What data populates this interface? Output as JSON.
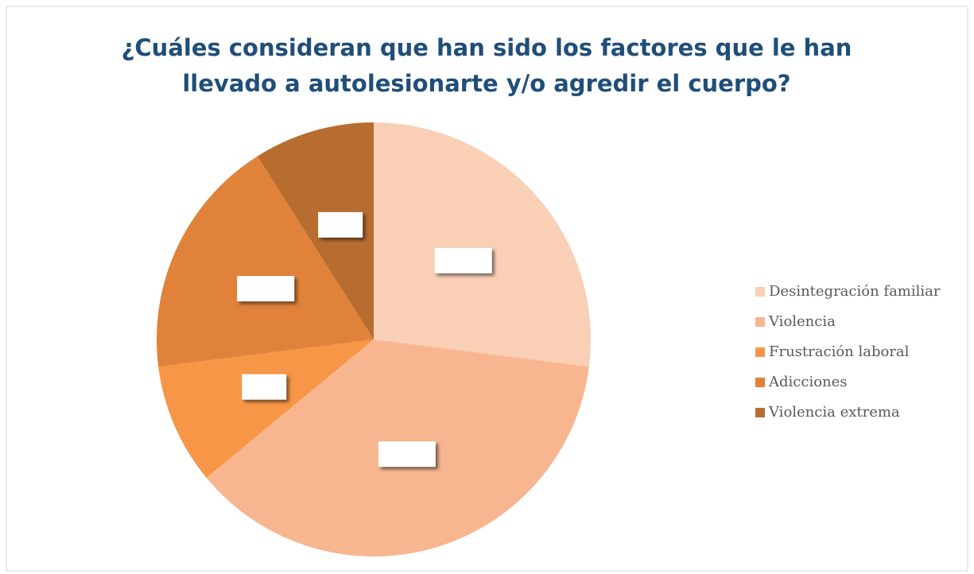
{
  "chart_data": {
    "type": "pie",
    "title": [
      "¿Cuáles consideran que han sido los factores que le han",
      "llevado a autolesionarte y/o agredir el cuerpo?"
    ],
    "categories": [
      "Desintegración familiar",
      "Violencia",
      "Frustración laboral",
      "Adicciones",
      "Violencia extrema"
    ],
    "values": [
      27,
      37,
      9,
      18,
      9
    ],
    "colors": [
      "#f9cfb5",
      "#f8b690",
      "#f79646",
      "#e0823a",
      "#b86d30"
    ],
    "legend": "right"
  }
}
